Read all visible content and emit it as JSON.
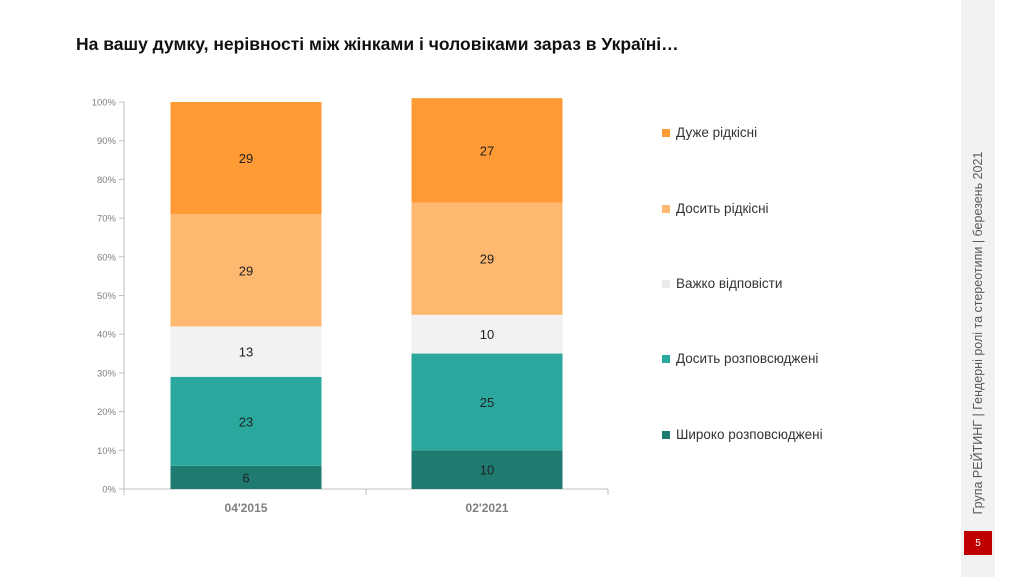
{
  "title": "На вашу думку, нерівності між жінками і чоловіками зараз в Україні…",
  "sidebar_text": "Група РЕЙТИНГ | Гендерні ролі та стереотипи | березень 2021",
  "page_number": "5",
  "chart_data": {
    "type": "bar",
    "stacked": true,
    "categories": [
      "04'2015",
      "02'2021"
    ],
    "ylim": [
      0,
      100
    ],
    "yticks": [
      "0%",
      "10%",
      "20%",
      "30%",
      "40%",
      "50%",
      "60%",
      "70%",
      "80%",
      "90%",
      "100%"
    ],
    "legend_position": "right",
    "series": [
      {
        "name": "Широко розповсюджені",
        "values": [
          6,
          10
        ],
        "color": "#1f7a70"
      },
      {
        "name": "Досить розповсюджені",
        "values": [
          23,
          25
        ],
        "color": "#2aa89e"
      },
      {
        "name": "Важко відповісти",
        "values": [
          13,
          10
        ],
        "color": "#f2f2f2"
      },
      {
        "name": "Досить рідкісні",
        "values": [
          29,
          29
        ],
        "color": "#ffb870"
      },
      {
        "name": "Дуже рідкісні",
        "values": [
          29,
          27
        ],
        "color": "#ff9a35"
      }
    ]
  }
}
